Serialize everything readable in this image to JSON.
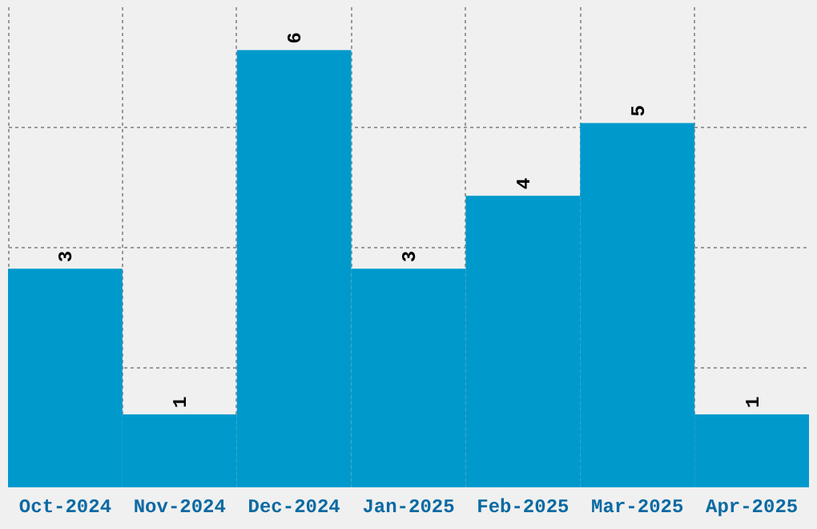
{
  "chart_data": {
    "type": "bar",
    "categories": [
      "Oct-2024",
      "Nov-2024",
      "Dec-2024",
      "Jan-2025",
      "Feb-2025",
      "Mar-2025",
      "Apr-2025"
    ],
    "values": [
      3,
      1,
      6,
      3,
      4,
      5,
      1
    ],
    "color": "#0099cc",
    "ylim": [
      0,
      6.6
    ],
    "yticks": [
      {
        "value": 1.65,
        "label": null
      },
      {
        "value": 3.3,
        "label": null
      },
      {
        "value": 4.95,
        "label": null
      }
    ],
    "grid": true,
    "data_labels": true,
    "tick_labels": "x"
  }
}
